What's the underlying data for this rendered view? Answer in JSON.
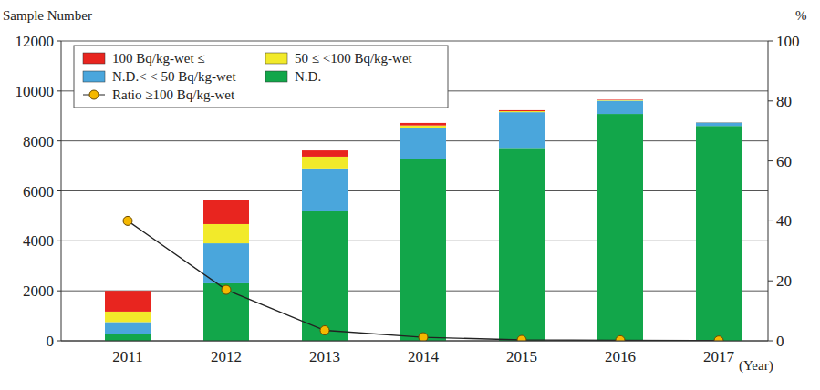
{
  "chart_data": {
    "type": "bar",
    "stacked": true,
    "grid": true,
    "legend": "top-left",
    "y_label": "Sample Number",
    "y2_label": "%",
    "x_label": "(Year)",
    "categories": [
      "2011",
      "2012",
      "2013",
      "2014",
      "2015",
      "2016",
      "2017"
    ],
    "ylim": [
      0,
      12000
    ],
    "yticks": [
      0,
      2000,
      4000,
      6000,
      8000,
      10000,
      12000
    ],
    "y2lim": [
      0,
      100
    ],
    "y2ticks": [
      0,
      20,
      40,
      60,
      80,
      100
    ],
    "series": [
      {
        "name": "N.D.",
        "type": "bar",
        "color": "#12a64a",
        "values": [
          280,
          2300,
          5180,
          7270,
          7720,
          9080,
          8600
        ]
      },
      {
        "name": "N.D.< < 50 Bq/kg-wet",
        "type": "bar",
        "color": "#4aa6dc",
        "values": [
          470,
          1600,
          1720,
          1230,
          1430,
          530,
          140
        ]
      },
      {
        "name": "50 ≤ <100 Bq/kg-wet",
        "type": "bar",
        "color": "#f2ea2a",
        "values": [
          420,
          770,
          470,
          120,
          40,
          20,
          5
        ]
      },
      {
        "name": "100 Bq/kg-wet ≤",
        "type": "bar",
        "color": "#e8251f",
        "values": [
          830,
          950,
          250,
          100,
          40,
          20,
          5
        ]
      },
      {
        "name": "Ratio ≥100 Bq/kg-wet",
        "type": "line",
        "axis": "y2",
        "color": "#f5b800",
        "marker": "circle",
        "line_style": "solid",
        "values": [
          40,
          17,
          3.5,
          1.2,
          0.3,
          0.2,
          0.1
        ]
      }
    ]
  }
}
